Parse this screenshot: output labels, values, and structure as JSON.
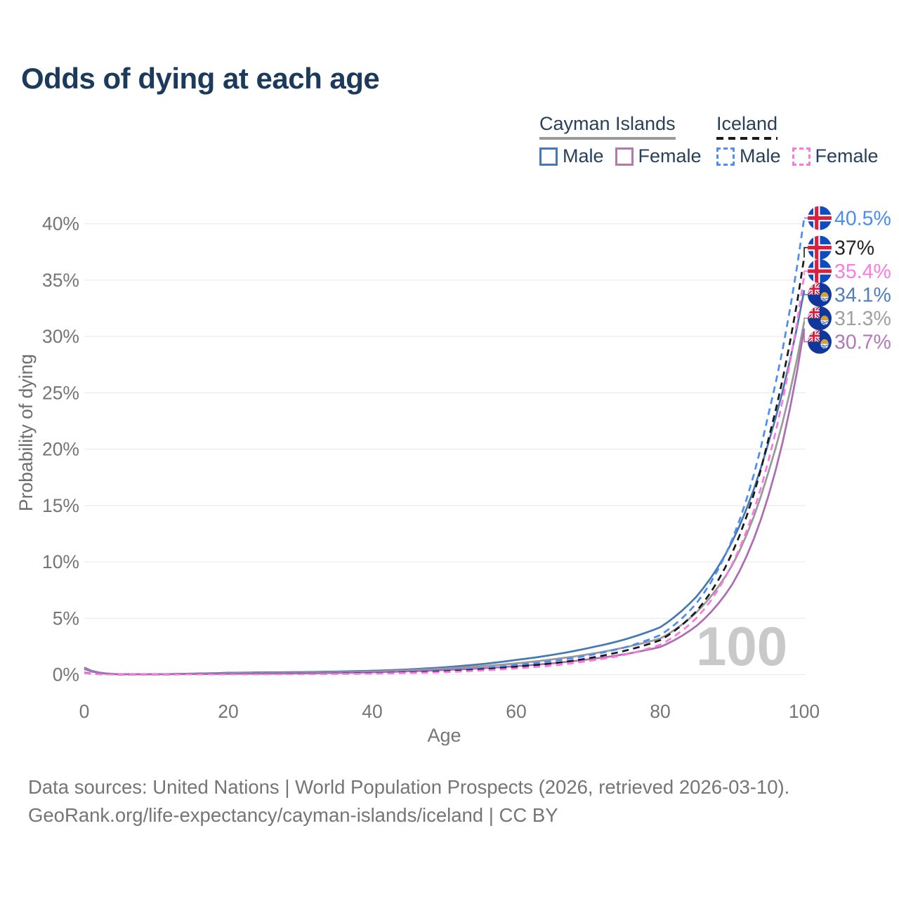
{
  "title": "Odds of dying at each age",
  "watermark": "100",
  "legend": {
    "groups": [
      {
        "name": "Cayman Islands",
        "line_style": "solid",
        "line_color": "#9a9a9a",
        "items": [
          {
            "label": "Male",
            "color": "#4678b2"
          },
          {
            "label": "Female",
            "color": "#b279ad"
          }
        ]
      },
      {
        "name": "Iceland",
        "line_style": "dashed",
        "line_color": "#1a1a1a",
        "items": [
          {
            "label": "Male",
            "color": "#4e8cf5"
          },
          {
            "label": "Female",
            "color": "#fa78e0"
          }
        ]
      }
    ]
  },
  "footer": {
    "line1": "Data sources: United Nations | World Population Prospects (2026, retrieved 2026-03-10).",
    "line2": "GeoRank.org/life-expectancy/cayman-islands/iceland | CC BY"
  },
  "chart_data": {
    "type": "line",
    "title": "Odds of dying at each age",
    "xlabel": "Age",
    "ylabel": "Probability of dying",
    "xlim": [
      0,
      100
    ],
    "ylim": [
      0,
      40.5
    ],
    "grid": true,
    "x_ticks": [
      0,
      20,
      40,
      60,
      80,
      100
    ],
    "y_ticks": [
      {
        "value": 0,
        "label": "0%"
      },
      {
        "value": 5,
        "label": "5%"
      },
      {
        "value": 10,
        "label": "10%"
      },
      {
        "value": 15,
        "label": "15%"
      },
      {
        "value": 20,
        "label": "20%"
      },
      {
        "value": 25,
        "label": "25%"
      },
      {
        "value": 30,
        "label": "30%"
      },
      {
        "value": 35,
        "label": "35%"
      },
      {
        "value": 40,
        "label": "40%"
      }
    ],
    "x": [
      0,
      5,
      10,
      15,
      20,
      25,
      30,
      35,
      40,
      45,
      50,
      55,
      60,
      65,
      70,
      75,
      80,
      85,
      90,
      95,
      100
    ],
    "series": [
      {
        "name": "Iceland Male",
        "country": "iceland",
        "line": "dashed",
        "color": "#4e8cf5",
        "label_color": "#4a8df0",
        "end_label": "40.5%",
        "values": [
          0.17,
          0.01,
          0.01,
          0.035,
          0.07,
          0.08,
          0.09,
          0.11,
          0.15,
          0.23,
          0.36,
          0.56,
          0.85,
          1.2,
          1.7,
          2.4,
          3.5,
          6.3,
          12.0,
          23.0,
          40.5
        ]
      },
      {
        "name": "Iceland Both sexes",
        "country": "iceland",
        "line": "dashed",
        "color": "#1a1a1a",
        "label_color": "#222222",
        "end_label": "37%",
        "values": [
          0.155,
          0.009,
          0.01,
          0.028,
          0.05,
          0.06,
          0.07,
          0.085,
          0.12,
          0.185,
          0.29,
          0.46,
          0.7,
          1.0,
          1.45,
          2.1,
          3.05,
          5.6,
          10.8,
          20.8,
          37.0
        ]
      },
      {
        "name": "Iceland Female",
        "country": "iceland",
        "line": "dashed",
        "color": "#fa78e0",
        "label_color": "#fa7ce0",
        "end_label": "35.4%",
        "values": [
          0.14,
          0.008,
          0.009,
          0.02,
          0.03,
          0.035,
          0.045,
          0.06,
          0.09,
          0.14,
          0.22,
          0.36,
          0.55,
          0.8,
          1.2,
          1.75,
          2.65,
          5.0,
          9.8,
          18.9,
          35.4
        ]
      },
      {
        "name": "Cayman Islands Male",
        "country": "cayman",
        "line": "solid",
        "color": "#4678b2",
        "label_color": "#527fbc",
        "end_label": "34.1%",
        "values": [
          0.62,
          0.03,
          0.035,
          0.09,
          0.16,
          0.2,
          0.22,
          0.27,
          0.34,
          0.46,
          0.65,
          0.92,
          1.3,
          1.75,
          2.35,
          3.1,
          4.2,
          6.9,
          11.8,
          20.5,
          34.1
        ]
      },
      {
        "name": "Cayman Islands Both sexes",
        "country": "cayman",
        "line": "solid",
        "color": "#999999",
        "label_color": "#a0a0a0",
        "end_label": "31.3%",
        "values": [
          0.56,
          0.028,
          0.032,
          0.07,
          0.12,
          0.15,
          0.17,
          0.21,
          0.27,
          0.38,
          0.53,
          0.74,
          1.0,
          1.35,
          1.8,
          2.4,
          3.2,
          5.5,
          9.7,
          17.9,
          31.3
        ]
      },
      {
        "name": "Cayman Islands Female",
        "country": "cayman",
        "line": "solid",
        "color": "#ac6cb2",
        "label_color": "#b278ba",
        "end_label": "30.7%",
        "values": [
          0.5,
          0.025,
          0.03,
          0.05,
          0.07,
          0.09,
          0.11,
          0.15,
          0.2,
          0.29,
          0.41,
          0.56,
          0.75,
          1.0,
          1.35,
          1.8,
          2.45,
          4.3,
          8.0,
          15.8,
          30.7
        ]
      }
    ]
  }
}
